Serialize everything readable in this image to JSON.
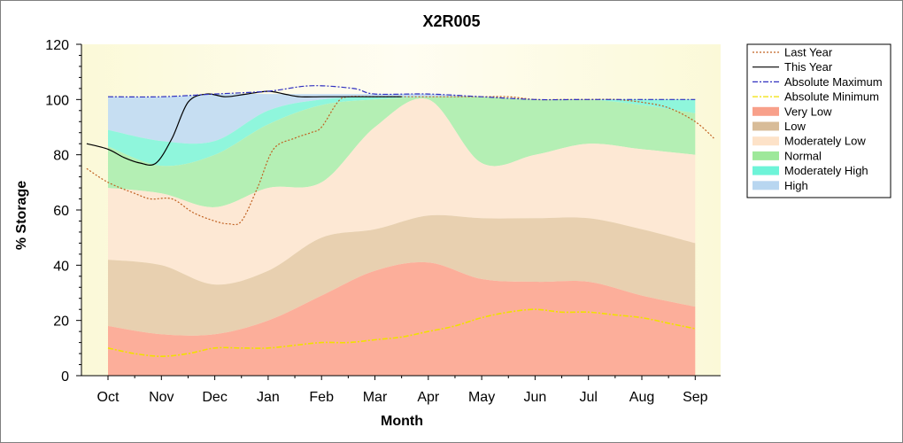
{
  "chart_data": {
    "type": "area",
    "title": "X2R005",
    "xlabel": "Month",
    "ylabel": "% Storage",
    "ylim": [
      0,
      120
    ],
    "yticks": [
      0,
      20,
      40,
      60,
      80,
      100,
      120
    ],
    "x_start": "Oct 1",
    "categories": [
      "Oct",
      "Nov",
      "Dec",
      "Jan",
      "Feb",
      "Mar",
      "Apr",
      "May",
      "Jun",
      "Jul",
      "Aug",
      "Sep"
    ],
    "grid": false,
    "legend_position": "right",
    "bands": [
      {
        "name": "High",
        "color": "#c6def2",
        "lower": [
          89,
          85,
          85,
          96,
          100,
          101,
          101,
          101,
          100,
          100,
          100,
          100
        ],
        "upper": [
          101,
          101,
          102,
          102,
          102,
          102,
          102,
          101,
          100,
          100,
          100,
          100
        ]
      },
      {
        "name": "Moderately High",
        "color": "#8ff6dc",
        "lower": [
          83,
          76,
          80,
          91,
          98,
          100,
          101,
          101,
          100,
          100,
          98,
          95
        ],
        "upper": [
          89,
          85,
          85,
          96,
          100,
          101,
          101,
          101,
          100,
          100,
          100,
          100
        ]
      },
      {
        "name": "Normal",
        "color": "#b4efb4",
        "lower": [
          68,
          66,
          61,
          68,
          70,
          90,
          100,
          77,
          80,
          84,
          82,
          80
        ],
        "upper": [
          83,
          76,
          80,
          91,
          98,
          100,
          101,
          101,
          100,
          100,
          98,
          95
        ]
      },
      {
        "name": "Moderately Low",
        "color": "#fde8d4",
        "lower": [
          42,
          40,
          33,
          38,
          50,
          53,
          58,
          57,
          57,
          57,
          53,
          48
        ],
        "upper": [
          68,
          66,
          61,
          68,
          70,
          90,
          100,
          77,
          80,
          84,
          82,
          80
        ]
      },
      {
        "name": "Low",
        "color": "#e8d0b0",
        "lower": [
          18,
          15,
          15,
          20,
          29,
          38,
          41,
          35,
          34,
          34,
          29,
          25
        ],
        "upper": [
          42,
          40,
          33,
          38,
          50,
          53,
          58,
          57,
          57,
          57,
          53,
          48
        ]
      },
      {
        "name": "Very Low",
        "color": "#fcae9a",
        "lower": [
          0,
          0,
          0,
          0,
          0,
          0,
          0,
          0,
          0,
          0,
          0,
          0
        ],
        "upper": [
          18,
          15,
          15,
          20,
          29,
          38,
          41,
          35,
          34,
          34,
          29,
          25
        ]
      }
    ],
    "series": [
      {
        "name": "Last Year",
        "color": "#c06020",
        "style": "dotted",
        "x": [
          -0.4,
          0,
          0.5,
          0.8,
          1.2,
          1.6,
          2,
          2.25,
          2.5,
          2.8,
          3.1,
          3.5,
          3.8,
          4,
          4.3,
          4.5,
          5,
          5.5,
          6,
          6.5,
          7,
          7.5,
          8,
          8.5,
          9,
          9.5,
          10,
          10.5,
          11,
          11.35
        ],
        "y": [
          75,
          70,
          66,
          64,
          64,
          59,
          56,
          55,
          56,
          68,
          82,
          86,
          88,
          90,
          99,
          101,
          101,
          101,
          101,
          101,
          101,
          101,
          100,
          100,
          100,
          100,
          99,
          97,
          92,
          86
        ]
      },
      {
        "name": "This Year",
        "color": "#000000",
        "style": "solid",
        "x": [
          -0.4,
          0,
          0.3,
          0.6,
          0.9,
          1.2,
          1.5,
          1.85,
          2.2,
          2.6,
          3,
          3.3,
          3.6,
          4,
          4.5,
          5,
          5.5
        ],
        "y": [
          84,
          82,
          79,
          77,
          77,
          86,
          99,
          102,
          101,
          102,
          103,
          102,
          101,
          101,
          101,
          101,
          101
        ]
      },
      {
        "name": "Absolute Maximum",
        "color": "#3030c0",
        "style": "dashdot",
        "x": [
          0,
          1,
          2,
          3,
          3.8,
          4.6,
          5,
          6,
          7,
          8,
          9,
          10,
          11
        ],
        "y": [
          101,
          101,
          102,
          103,
          105,
          104,
          102,
          102,
          101,
          100,
          100,
          100,
          100
        ]
      },
      {
        "name": "Absolute Minimum",
        "color": "#f0e000",
        "style": "dashdot",
        "x": [
          0,
          0.5,
          1,
          1.5,
          2,
          2.5,
          3,
          3.5,
          4,
          4.5,
          5,
          5.5,
          6,
          6.5,
          7,
          7.5,
          8,
          8.5,
          9,
          9.5,
          10,
          10.5,
          11
        ],
        "y": [
          10,
          8,
          7,
          8,
          10,
          10,
          10,
          11,
          12,
          12,
          13,
          14,
          16,
          18,
          21,
          23,
          24,
          23,
          23,
          22,
          21,
          19,
          17
        ]
      }
    ],
    "legend": [
      {
        "label": "Last Year",
        "kind": "line",
        "color": "#c06020"
      },
      {
        "label": "This Year",
        "kind": "line",
        "color": "#000000"
      },
      {
        "label": "Absolute Maximum",
        "kind": "line",
        "color": "#3030c0"
      },
      {
        "label": "Absolute Minimum",
        "kind": "line",
        "color": "#f0e000"
      },
      {
        "label": "Very Low",
        "kind": "box",
        "color": "#f8a08a"
      },
      {
        "label": "Low",
        "kind": "box",
        "color": "#d8bc98"
      },
      {
        "label": "Moderately Low",
        "kind": "box",
        "color": "#fde2c8"
      },
      {
        "label": "Normal",
        "kind": "box",
        "color": "#9ee89a"
      },
      {
        "label": "Moderately High",
        "kind": "box",
        "color": "#6ef4d8"
      },
      {
        "label": "High",
        "kind": "box",
        "color": "#b8d6f0"
      }
    ]
  }
}
